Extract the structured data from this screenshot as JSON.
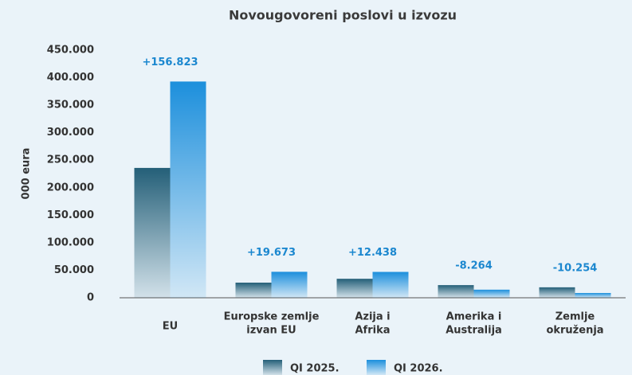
{
  "chart_data": {
    "type": "bar",
    "title": "Novougovoreni poslovi u izvozu",
    "y_label": "000 eura",
    "categories": [
      "EU",
      [
        "Europske zemlje",
        "izvan EU"
      ],
      [
        "Azija i",
        "Afrika"
      ],
      [
        "Amerika i",
        "Australija"
      ],
      [
        "Zemlje",
        "okruženja"
      ]
    ],
    "series": [
      {
        "name": "QI 2025.",
        "color": "#245f78",
        "values": [
          236000,
          27500,
          34500,
          23000,
          19000
        ]
      },
      {
        "name": "QI 2026.",
        "color": "#1c8fdc",
        "values": [
          393000,
          47200,
          47000,
          14700,
          8700
        ]
      }
    ],
    "annotations": [
      "+156.823",
      "+19.673",
      "+12.438",
      "-8.264",
      "-10.254"
    ],
    "ylim": [
      0,
      450000
    ],
    "yticks": [
      0,
      {
        "value": 50000,
        "label": "50.000"
      },
      {
        "value": 100000,
        "label": "100.000"
      },
      {
        "value": 150000,
        "label": "150.000"
      },
      {
        "value": 200000,
        "label": "200.000"
      },
      {
        "value": 250000,
        "label": "250.000"
      },
      {
        "value": 300000,
        "label": "300.000"
      },
      {
        "value": 350000,
        "label": "350.000"
      },
      {
        "value": 400000,
        "label": "400.000"
      },
      {
        "value": 450000,
        "label": "450.000"
      }
    ],
    "legend": "bottom"
  }
}
